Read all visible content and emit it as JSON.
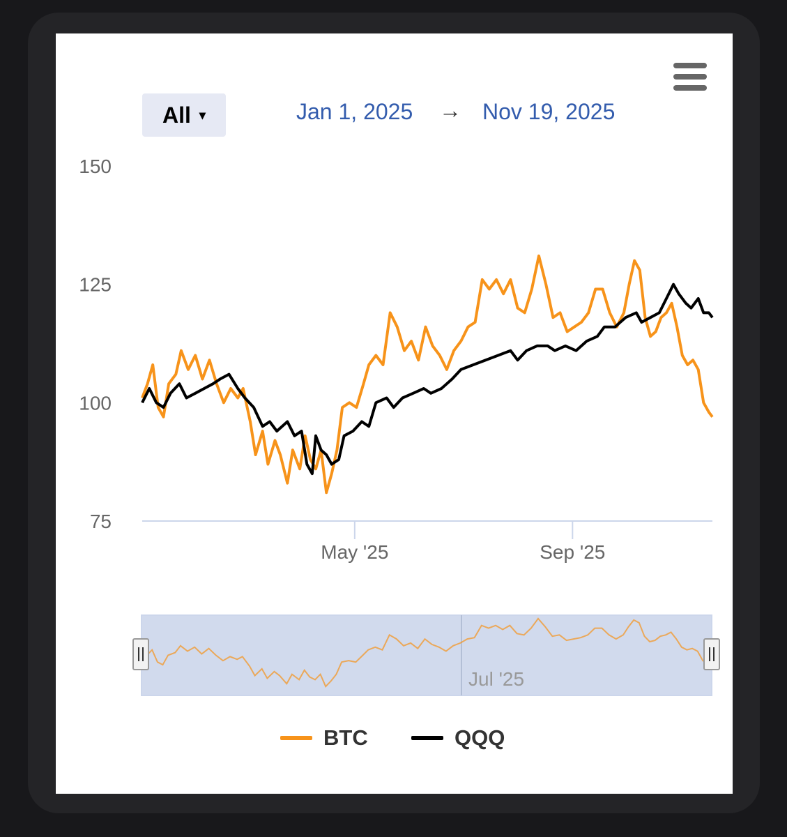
{
  "toolbar": {
    "range_selector_label": "All",
    "range_selector_caret": "▾",
    "date_from": "Jan 1, 2025",
    "date_arrow": "→",
    "date_to": "Nov 19, 2025",
    "menu_icon": "hamburger-icon"
  },
  "navigator": {
    "tick_label": "Jul '25",
    "handle_icon": "grip-icon"
  },
  "colors": {
    "btc": "#f7931a",
    "qqq": "#000000",
    "axis": "#ccd6eb",
    "navigator_mask": "#6685c2"
  },
  "chart_data": {
    "type": "line",
    "x_start": "2025-01-01",
    "x_end": "2025-11-19",
    "ylim": [
      75,
      150
    ],
    "y_ticks": [
      75,
      100,
      125,
      150
    ],
    "x_ticks": [
      {
        "date": "2025-05-01",
        "label": "May '25"
      },
      {
        "date": "2025-09-01",
        "label": "Sep '25"
      }
    ],
    "series": [
      {
        "name": "BTC",
        "color": "#f7931a",
        "points": [
          [
            "2025-01-01",
            101
          ],
          [
            "2025-01-04",
            104
          ],
          [
            "2025-01-07",
            108
          ],
          [
            "2025-01-10",
            99
          ],
          [
            "2025-01-13",
            97
          ],
          [
            "2025-01-16",
            104
          ],
          [
            "2025-01-20",
            106
          ],
          [
            "2025-01-23",
            111
          ],
          [
            "2025-01-27",
            107
          ],
          [
            "2025-01-31",
            110
          ],
          [
            "2025-02-04",
            105
          ],
          [
            "2025-02-08",
            109
          ],
          [
            "2025-02-12",
            104
          ],
          [
            "2025-02-16",
            100
          ],
          [
            "2025-02-20",
            103
          ],
          [
            "2025-02-24",
            101
          ],
          [
            "2025-02-27",
            103
          ],
          [
            "2025-03-03",
            96
          ],
          [
            "2025-03-06",
            89
          ],
          [
            "2025-03-10",
            94
          ],
          [
            "2025-03-13",
            87
          ],
          [
            "2025-03-17",
            92
          ],
          [
            "2025-03-20",
            89
          ],
          [
            "2025-03-24",
            83
          ],
          [
            "2025-03-27",
            90
          ],
          [
            "2025-03-31",
            86
          ],
          [
            "2025-04-03",
            93
          ],
          [
            "2025-04-06",
            88
          ],
          [
            "2025-04-09",
            86
          ],
          [
            "2025-04-12",
            90
          ],
          [
            "2025-04-15",
            81
          ],
          [
            "2025-04-18",
            85
          ],
          [
            "2025-04-21",
            90
          ],
          [
            "2025-04-24",
            99
          ],
          [
            "2025-04-28",
            100
          ],
          [
            "2025-05-02",
            99
          ],
          [
            "2025-05-06",
            104
          ],
          [
            "2025-05-09",
            108
          ],
          [
            "2025-05-13",
            110
          ],
          [
            "2025-05-17",
            108
          ],
          [
            "2025-05-21",
            119
          ],
          [
            "2025-05-25",
            116
          ],
          [
            "2025-05-29",
            111
          ],
          [
            "2025-06-02",
            113
          ],
          [
            "2025-06-06",
            109
          ],
          [
            "2025-06-10",
            116
          ],
          [
            "2025-06-14",
            112
          ],
          [
            "2025-06-18",
            110
          ],
          [
            "2025-06-22",
            107
          ],
          [
            "2025-06-26",
            111
          ],
          [
            "2025-06-30",
            113
          ],
          [
            "2025-07-04",
            116
          ],
          [
            "2025-07-08",
            117
          ],
          [
            "2025-07-12",
            126
          ],
          [
            "2025-07-16",
            124
          ],
          [
            "2025-07-20",
            126
          ],
          [
            "2025-07-24",
            123
          ],
          [
            "2025-07-28",
            126
          ],
          [
            "2025-08-01",
            120
          ],
          [
            "2025-08-05",
            119
          ],
          [
            "2025-08-09",
            124
          ],
          [
            "2025-08-13",
            131
          ],
          [
            "2025-08-17",
            125
          ],
          [
            "2025-08-21",
            118
          ],
          [
            "2025-08-25",
            119
          ],
          [
            "2025-08-29",
            115
          ],
          [
            "2025-09-02",
            116
          ],
          [
            "2025-09-06",
            117
          ],
          [
            "2025-09-10",
            119
          ],
          [
            "2025-09-14",
            124
          ],
          [
            "2025-09-18",
            124
          ],
          [
            "2025-09-22",
            119
          ],
          [
            "2025-09-26",
            116
          ],
          [
            "2025-09-30",
            119
          ],
          [
            "2025-10-03",
            125
          ],
          [
            "2025-10-06",
            130
          ],
          [
            "2025-10-09",
            128
          ],
          [
            "2025-10-12",
            118
          ],
          [
            "2025-10-15",
            114
          ],
          [
            "2025-10-18",
            115
          ],
          [
            "2025-10-21",
            118
          ],
          [
            "2025-10-24",
            119
          ],
          [
            "2025-10-27",
            121
          ],
          [
            "2025-10-30",
            116
          ],
          [
            "2025-11-02",
            110
          ],
          [
            "2025-11-05",
            108
          ],
          [
            "2025-11-08",
            109
          ],
          [
            "2025-11-11",
            107
          ],
          [
            "2025-11-14",
            100
          ],
          [
            "2025-11-17",
            98
          ],
          [
            "2025-11-19",
            97
          ]
        ]
      },
      {
        "name": "QQQ",
        "color": "#000000",
        "points": [
          [
            "2025-01-01",
            100
          ],
          [
            "2025-01-05",
            103
          ],
          [
            "2025-01-09",
            100
          ],
          [
            "2025-01-13",
            99
          ],
          [
            "2025-01-17",
            102
          ],
          [
            "2025-01-22",
            104
          ],
          [
            "2025-01-26",
            101
          ],
          [
            "2025-01-31",
            102
          ],
          [
            "2025-02-05",
            103
          ],
          [
            "2025-02-10",
            104
          ],
          [
            "2025-02-14",
            105
          ],
          [
            "2025-02-19",
            106
          ],
          [
            "2025-02-24",
            103
          ],
          [
            "2025-02-28",
            101
          ],
          [
            "2025-03-05",
            99
          ],
          [
            "2025-03-10",
            95
          ],
          [
            "2025-03-14",
            96
          ],
          [
            "2025-03-18",
            94
          ],
          [
            "2025-03-24",
            96
          ],
          [
            "2025-03-28",
            93
          ],
          [
            "2025-04-01",
            94
          ],
          [
            "2025-04-04",
            87
          ],
          [
            "2025-04-07",
            85
          ],
          [
            "2025-04-09",
            93
          ],
          [
            "2025-04-12",
            90
          ],
          [
            "2025-04-15",
            89
          ],
          [
            "2025-04-18",
            87
          ],
          [
            "2025-04-22",
            88
          ],
          [
            "2025-04-25",
            93
          ],
          [
            "2025-04-30",
            94
          ],
          [
            "2025-05-05",
            96
          ],
          [
            "2025-05-09",
            95
          ],
          [
            "2025-05-13",
            100
          ],
          [
            "2025-05-19",
            101
          ],
          [
            "2025-05-23",
            99
          ],
          [
            "2025-05-28",
            101
          ],
          [
            "2025-06-03",
            102
          ],
          [
            "2025-06-09",
            103
          ],
          [
            "2025-06-13",
            102
          ],
          [
            "2025-06-19",
            103
          ],
          [
            "2025-06-25",
            105
          ],
          [
            "2025-06-30",
            107
          ],
          [
            "2025-07-07",
            108
          ],
          [
            "2025-07-14",
            109
          ],
          [
            "2025-07-21",
            110
          ],
          [
            "2025-07-28",
            111
          ],
          [
            "2025-08-01",
            109
          ],
          [
            "2025-08-06",
            111
          ],
          [
            "2025-08-12",
            112
          ],
          [
            "2025-08-18",
            112
          ],
          [
            "2025-08-22",
            111
          ],
          [
            "2025-08-28",
            112
          ],
          [
            "2025-09-03",
            111
          ],
          [
            "2025-09-09",
            113
          ],
          [
            "2025-09-15",
            114
          ],
          [
            "2025-09-19",
            116
          ],
          [
            "2025-09-25",
            116
          ],
          [
            "2025-10-01",
            118
          ],
          [
            "2025-10-07",
            119
          ],
          [
            "2025-10-10",
            117
          ],
          [
            "2025-10-15",
            118
          ],
          [
            "2025-10-20",
            119
          ],
          [
            "2025-10-24",
            122
          ],
          [
            "2025-10-28",
            125
          ],
          [
            "2025-10-31",
            123
          ],
          [
            "2025-11-04",
            121
          ],
          [
            "2025-11-07",
            120
          ],
          [
            "2025-11-11",
            122
          ],
          [
            "2025-11-14",
            119
          ],
          [
            "2025-11-17",
            119
          ],
          [
            "2025-11-19",
            118
          ]
        ]
      }
    ],
    "legend_position": "bottom-center",
    "grid": false
  }
}
